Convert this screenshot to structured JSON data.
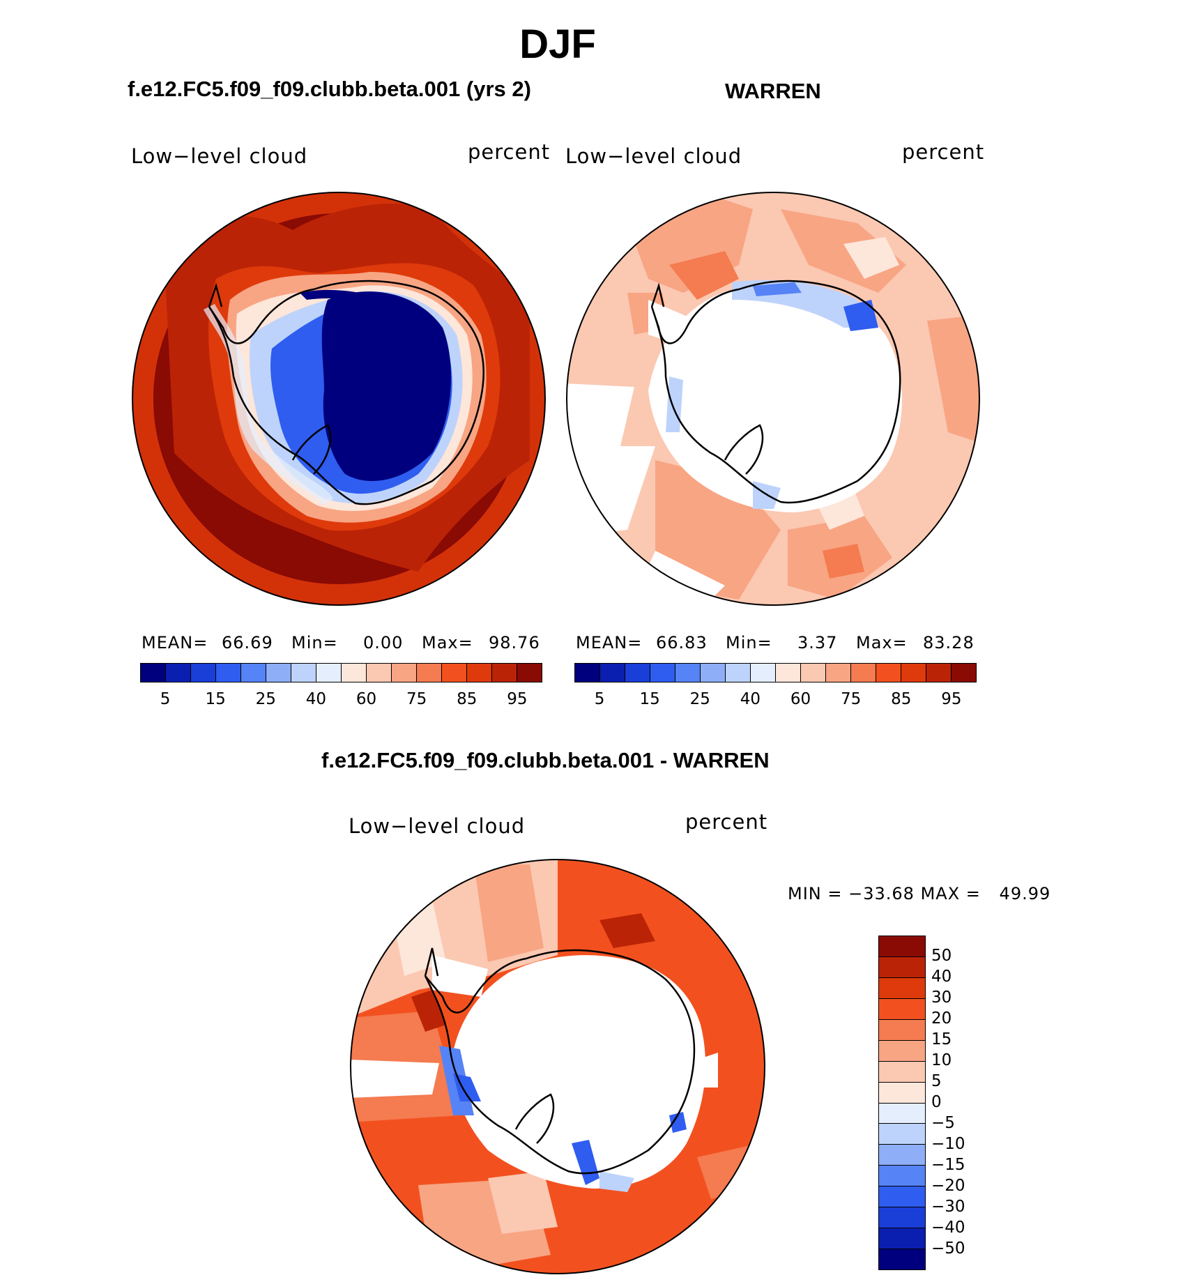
{
  "title": "DJF",
  "panels": [
    {
      "title": "f.e12.FC5.f09_f09.clubb.beta.001 (yrs 2)",
      "left_label": "Low−level cloud",
      "right_label": "percent",
      "stats": {
        "mean_label": "MEAN=",
        "mean": "66.69",
        "min_label": "Min=",
        "min": "0.00",
        "max_label": "Max=",
        "max": "98.76"
      }
    },
    {
      "title": "WARREN",
      "left_label": "Low−level cloud",
      "right_label": "percent",
      "stats": {
        "mean_label": "MEAN=",
        "mean": "66.83",
        "min_label": "Min=",
        "min": "3.37",
        "max_label": "Max=",
        "max": "83.28"
      }
    }
  ],
  "abs_colorbar": {
    "colors": [
      "#00007f",
      "#0a1fb0",
      "#1a3ed8",
      "#2f5df0",
      "#5683f5",
      "#8eaef8",
      "#bdd3fb",
      "#e4eefc",
      "#fde6da",
      "#fbc8b2",
      "#f8a584",
      "#f57b50",
      "#f2511f",
      "#df3a0b",
      "#bb2306",
      "#8a0a04"
    ],
    "tick_labels": [
      "5",
      "15",
      "25",
      "40",
      "60",
      "75",
      "85",
      "95"
    ]
  },
  "diff_panel": {
    "title": "f.e12.FC5.f09_f09.clubb.beta.001 - WARREN",
    "left_label": "Low−level cloud",
    "right_label": "percent",
    "minmax": {
      "min_label": "MIN =",
      "min": "−33.68",
      "max_label": "MAX =",
      "max": "49.99"
    }
  },
  "diff_colorbar": {
    "colors": [
      "#8a0a04",
      "#bb2306",
      "#df3a0b",
      "#f2511f",
      "#f57b50",
      "#f8a584",
      "#fbc8b2",
      "#fde6da",
      "#e4eefc",
      "#bdd3fb",
      "#8eaef8",
      "#5683f5",
      "#2f5df0",
      "#1a3ed8",
      "#0a1fb0",
      "#00007f"
    ],
    "tick_labels": [
      "50",
      "40",
      "30",
      "20",
      "15",
      "10",
      "5",
      "0",
      "−5",
      "−10",
      "−15",
      "−20",
      "−30",
      "−40",
      "−50"
    ]
  },
  "map_colors": {
    "deep_red": "#8a0a04",
    "red": "#bb2306",
    "orange_red": "#df3a0b",
    "orange": "#f2511f",
    "salmon": "#f8a584",
    "light_salmon": "#fbc8b2",
    "pale": "#fde6da",
    "pale_blue": "#e4eefc",
    "light_blue": "#bdd3fb",
    "blue": "#2f5df0",
    "navy": "#00007f"
  }
}
